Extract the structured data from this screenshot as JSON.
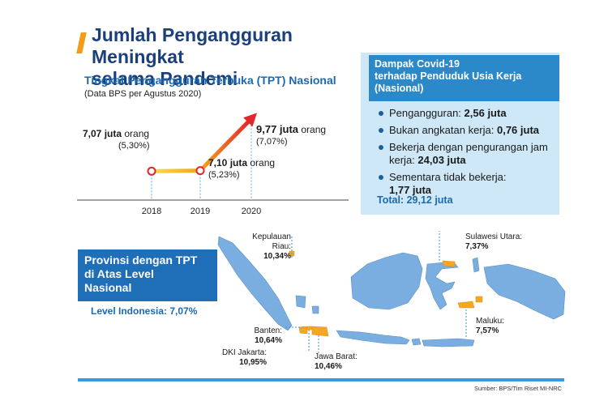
{
  "header": {
    "title_line1": "Jumlah Pengangguran Meningkat",
    "title_line2": "selama Pandemi"
  },
  "chart": {
    "subtitle": "Tingkat Pengangguran Terbuka (TPT) Nasional",
    "note": "(Data BPS per Agustus 2020)"
  },
  "chart_data": {
    "type": "line",
    "title": "Tingkat Pengangguran Terbuka (TPT) Nasional",
    "x": [
      "2018",
      "2019",
      "2020"
    ],
    "series": [
      {
        "values": [
          7.07,
          7.1,
          9.77
        ],
        "unit": "juta orang"
      },
      {
        "values": [
          5.3,
          5.23,
          7.07
        ],
        "unit": "%"
      }
    ],
    "labels": [
      {
        "main": "7,07 juta",
        "unit": "orang",
        "pct": "(5,30%)"
      },
      {
        "main": "7,10 juta",
        "unit": "orang",
        "pct": "(5,23%)"
      },
      {
        "main": "9,77 juta",
        "unit": "orang",
        "pct": "(7,07%)"
      }
    ],
    "colors": {
      "line_start": "#f7e041",
      "line_end": "#e3262b",
      "marker": "#e3262b"
    }
  },
  "impact": {
    "title_line1": "Dampak Covid-19",
    "title_line2": "terhadap Penduduk Usia Kerja",
    "title_line3": "(Nasional)",
    "items": [
      {
        "label": "Pengangguran: ",
        "value": "2,56 juta"
      },
      {
        "label": "Bukan angkatan kerja: ",
        "value": "0,76 juta"
      },
      {
        "label": "Bekerja dengan pengurangan jam kerja: ",
        "value": "24,03 juta"
      },
      {
        "label": "Sementara tidak bekerja: ",
        "value": "1,77 juta"
      }
    ],
    "total": "Total: 29,12 juta"
  },
  "provinces": {
    "box_line1": "Provinsi dengan TPT",
    "box_line2": "di Atas Level",
    "box_line3": "Nasional",
    "level": "Level Indonesia: 7,07%",
    "labels": [
      {
        "name": "Kepulauan",
        "name2": "Riau:",
        "value": "10,34%"
      },
      {
        "name": "Sulawesi Utara:",
        "value": "7,37%"
      },
      {
        "name": "Maluku:",
        "value": "7,57%"
      },
      {
        "name": "Banten:",
        "value": "10,64%"
      },
      {
        "name": "DKI Jakarta:",
        "value": "10,95%"
      },
      {
        "name": "Jawa Barat:",
        "value": "10,46%"
      }
    ]
  },
  "colors": {
    "title": "#1b3f7a",
    "accent": "#f39c1a",
    "blue": "#1a6ab3",
    "map_land": "#7aaee0",
    "map_highlight": "#f5a623"
  },
  "source": "Sumber: BPS/Tim Riset MI-NRC"
}
